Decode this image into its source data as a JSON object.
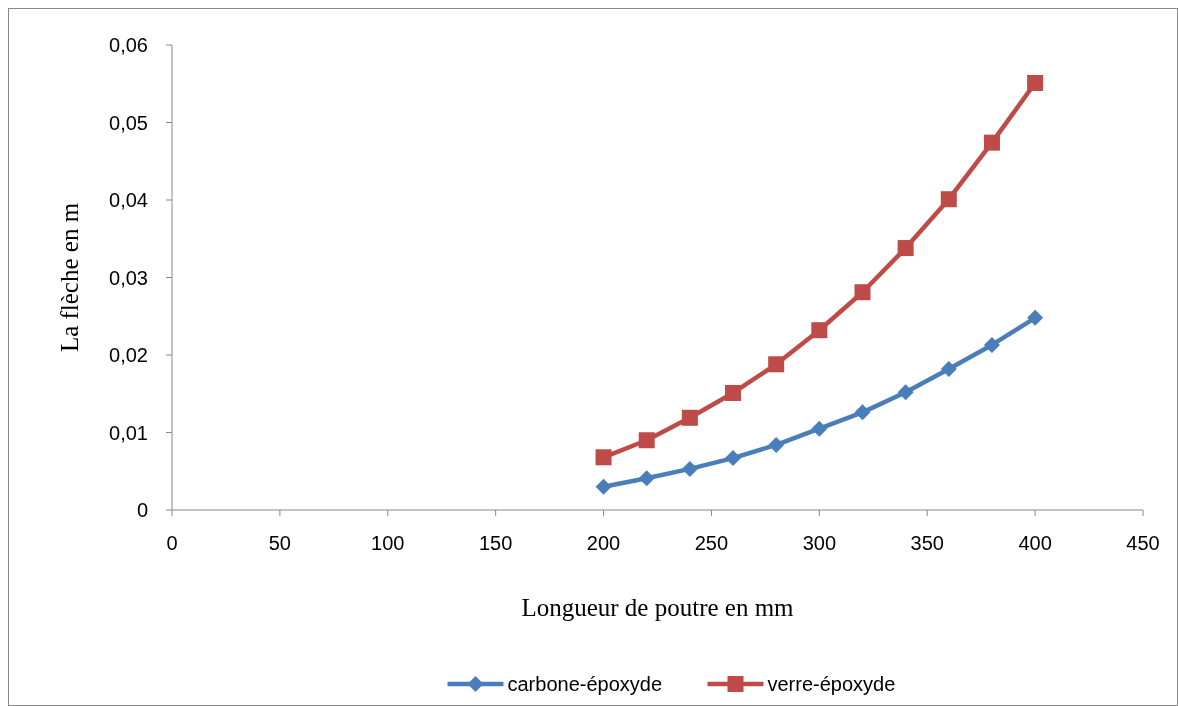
{
  "chart_data": {
    "type": "line",
    "xlabel": "Longueur de poutre en mm",
    "ylabel": "La flèche en m",
    "xlim": [
      0,
      450
    ],
    "xticks": [
      0,
      50,
      100,
      150,
      200,
      250,
      300,
      350,
      400,
      450
    ],
    "ylim": [
      0,
      0.06
    ],
    "yticks": [
      {
        "value": 0,
        "label": "0"
      },
      {
        "value": 0.01,
        "label": "0,01"
      },
      {
        "value": 0.02,
        "label": "0,02"
      },
      {
        "value": 0.03,
        "label": "0,03"
      },
      {
        "value": 0.04,
        "label": "0,04"
      },
      {
        "value": 0.05,
        "label": "0,05"
      },
      {
        "value": 0.06,
        "label": "0,06"
      }
    ],
    "grid": false,
    "legend": "bottom",
    "line_style": "solid",
    "x": [
      200,
      220,
      240,
      260,
      280,
      300,
      320,
      340,
      360,
      380,
      400
    ],
    "series": [
      {
        "name": "carbone-époxyde",
        "color": "#4a7ebb",
        "marker": "diamond",
        "values": [
          0.003,
          0.0041,
          0.0053,
          0.0067,
          0.0084,
          0.0105,
          0.0126,
          0.0152,
          0.0182,
          0.0213,
          0.0248
        ]
      },
      {
        "name": "verre-époxyde",
        "color": "#be4b48",
        "marker": "square",
        "values": [
          0.0068,
          0.009,
          0.0119,
          0.0151,
          0.0188,
          0.0232,
          0.0281,
          0.0338,
          0.0401,
          0.0474,
          0.0551
        ]
      }
    ]
  }
}
